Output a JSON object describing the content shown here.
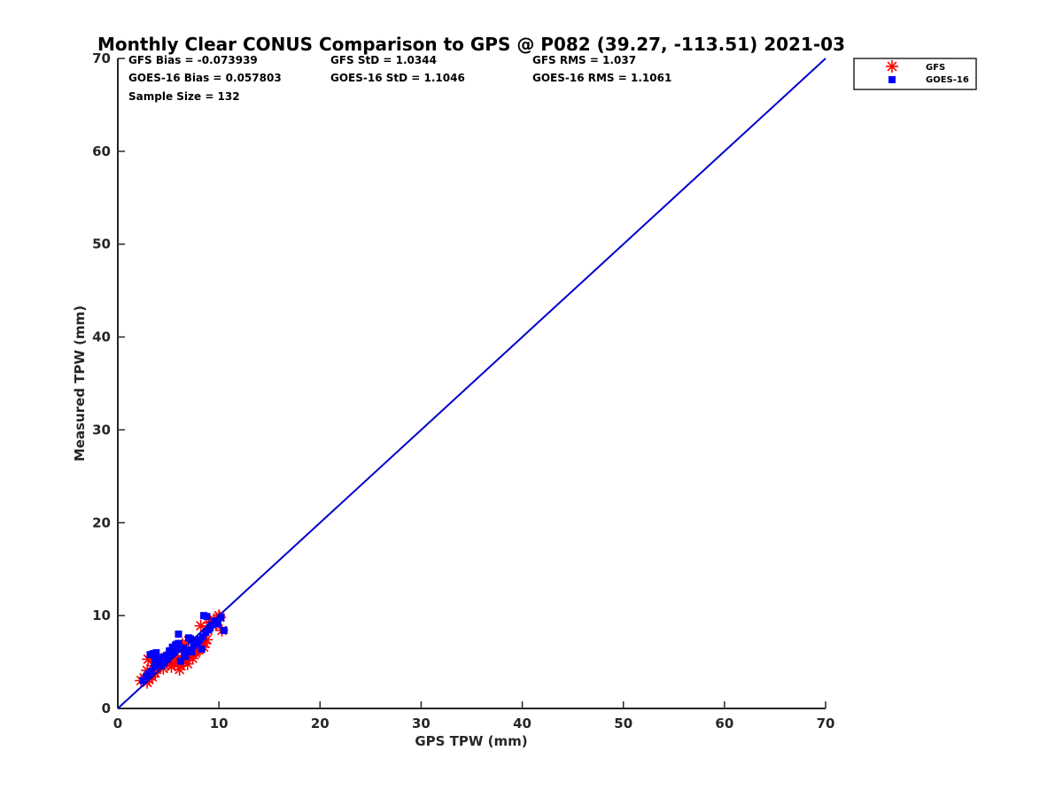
{
  "chart_data": {
    "type": "scatter",
    "title": "Monthly Clear CONUS Comparison to GPS @ P082 (39.27, -113.51) 2021-03",
    "xlabel": "GPS TPW (mm)",
    "ylabel": "Measured TPW (mm)",
    "xlim": [
      0,
      70
    ],
    "ylim": [
      0,
      70
    ],
    "xticks": [
      0,
      10,
      20,
      30,
      40,
      50,
      60,
      70
    ],
    "yticks": [
      0,
      10,
      20,
      30,
      40,
      50,
      60,
      70
    ],
    "grid": false,
    "legend_position": "top-right outside",
    "colors": {
      "gfs": "#ff0000",
      "goes": "#0000ff",
      "line": "#0000cc"
    },
    "stats": {
      "gfs_bias": "GFS Bias = -0.073939",
      "gfs_std": "GFS StD = 1.0344",
      "gfs_rms": "GFS RMS = 1.037",
      "goes_bias": "GOES-16 Bias = 0.057803",
      "goes_std": "GOES-16 StD = 1.1046",
      "goes_rms": "GOES-16 RMS = 1.1061",
      "sample_size": "Sample Size = 132"
    },
    "reference_line": {
      "x": [
        0,
        70
      ],
      "y": [
        0,
        70
      ]
    },
    "series": [
      {
        "name": "GFS",
        "marker": "asterisk",
        "x": [
          2.3,
          2.6,
          2.9,
          3.1,
          3.4,
          3.7,
          3.0,
          3.3,
          3.6,
          3.9,
          4.2,
          4.5,
          4.8,
          5.0,
          5.3,
          5.6,
          5.9,
          6.2,
          6.5,
          6.8,
          7.1,
          7.4,
          7.7,
          8.0,
          8.3,
          8.6,
          8.9,
          9.2,
          9.5,
          10.0,
          10.3,
          2.9,
          3.5,
          4.1,
          4.7,
          5.3,
          5.9,
          6.4,
          7.0,
          7.6,
          8.2,
          8.8,
          9.4,
          10.1,
          4.4,
          5.6,
          6.1,
          6.9,
          7.3,
          8.5,
          9.0,
          5.2,
          6.3,
          7.8,
          8.4,
          9.7
        ],
        "y": [
          3.0,
          3.3,
          2.8,
          3.1,
          3.4,
          3.8,
          5.3,
          5.6,
          4.0,
          4.4,
          4.7,
          4.3,
          4.9,
          5.1,
          4.5,
          4.8,
          5.3,
          4.6,
          5.0,
          5.2,
          5.6,
          5.4,
          6.0,
          6.3,
          6.8,
          7.0,
          8.4,
          9.3,
          9.6,
          10.0,
          8.4,
          4.1,
          4.6,
          5.0,
          5.5,
          6.0,
          6.4,
          6.9,
          7.3,
          6.4,
          8.9,
          7.4,
          9.0,
          9.8,
          4.9,
          5.7,
          4.2,
          4.8,
          6.0,
          6.6,
          9.2,
          5.0,
          5.3,
          6.2,
          7.2,
          9.0
        ]
      },
      {
        "name": "GOES-16",
        "marker": "square",
        "x": [
          2.5,
          2.8,
          3.0,
          3.2,
          3.5,
          3.8,
          4.0,
          3.3,
          3.6,
          3.9,
          4.2,
          4.5,
          4.8,
          5.1,
          5.4,
          5.7,
          6.0,
          6.3,
          6.6,
          6.9,
          7.2,
          7.5,
          7.8,
          8.1,
          8.4,
          8.7,
          9.0,
          9.3,
          9.6,
          10.2,
          10.5,
          4.3,
          4.9,
          5.5,
          6.1,
          6.7,
          7.3,
          7.9,
          8.5,
          9.1,
          3.7,
          4.6,
          5.2,
          5.8,
          6.2,
          6.0,
          7.0,
          8.3,
          8.8,
          9.9
        ],
        "y": [
          3.0,
          3.4,
          3.7,
          5.8,
          5.9,
          6.0,
          5.2,
          4.0,
          4.5,
          4.8,
          5.0,
          5.5,
          5.7,
          6.2,
          6.6,
          6.8,
          7.0,
          6.5,
          5.9,
          6.3,
          7.5,
          6.8,
          7.0,
          7.4,
          7.7,
          8.2,
          8.5,
          9.0,
          9.4,
          9.8,
          8.4,
          4.6,
          5.3,
          6.0,
          6.5,
          5.6,
          6.1,
          7.2,
          10.0,
          8.7,
          5.3,
          4.9,
          5.8,
          6.9,
          5.1,
          8.0,
          7.6,
          6.4,
          9.9,
          9.1
        ]
      }
    ]
  }
}
